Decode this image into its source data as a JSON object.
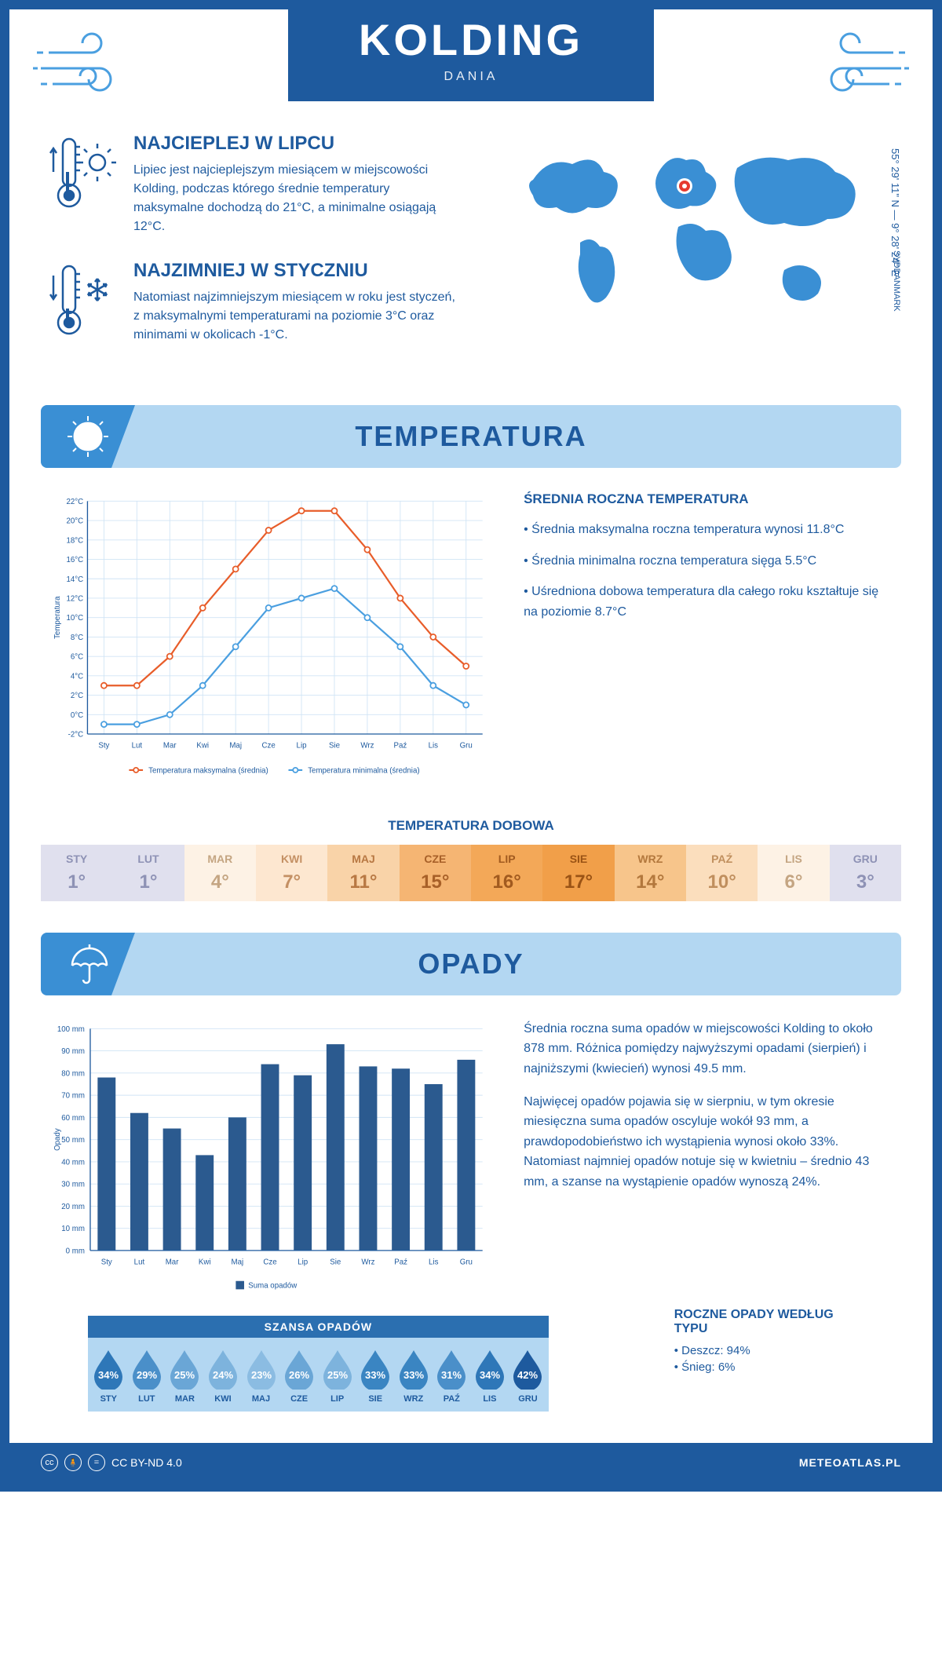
{
  "header": {
    "city": "KOLDING",
    "country": "DANIA",
    "coords": "55° 29' 11\" N — 9° 28' 24\" E",
    "region": "SYDDANMARK"
  },
  "colors": {
    "primary": "#1e5a9e",
    "lightBlue": "#b3d7f2",
    "midBlue": "#3a8fd4",
    "orange": "#e85d2a",
    "chartBlue": "#4a9fe0",
    "grid": "#d0e4f5",
    "barFill": "#2b5a8f"
  },
  "warmest": {
    "title": "NAJCIEPLEJ W LIPCU",
    "text": "Lipiec jest najcieplejszym miesiącem w miejscowości Kolding, podczas którego średnie temperatury maksymalne dochodzą do 21°C, a minimalne osiągają 12°C."
  },
  "coldest": {
    "title": "NAJZIMNIEJ W STYCZNIU",
    "text": "Natomiast najzimniejszym miesiącem w roku jest styczeń, z maksymalnymi temperaturami na poziomie 3°C oraz minimami w okolicach -1°C."
  },
  "temp_section_title": "TEMPERATURA",
  "temp_chart": {
    "type": "line",
    "months": [
      "Sty",
      "Lut",
      "Mar",
      "Kwi",
      "Maj",
      "Cze",
      "Lip",
      "Sie",
      "Wrz",
      "Paź",
      "Lis",
      "Gru"
    ],
    "y_label": "Temperatura",
    "y_min": -2,
    "y_max": 22,
    "y_step": 2,
    "series": [
      {
        "name": "Temperatura maksymalna (średnia)",
        "color": "#e85d2a",
        "values": [
          3,
          3,
          6,
          11,
          15,
          19,
          21,
          21,
          17,
          12,
          8,
          5
        ]
      },
      {
        "name": "Temperatura minimalna (średnia)",
        "color": "#4a9fe0",
        "values": [
          -1,
          -1,
          0,
          3,
          7,
          11,
          12,
          13,
          10,
          7,
          3,
          1
        ]
      }
    ],
    "grid_color": "#d0e4f5",
    "title_fontsize": 11,
    "axis_fontsize": 11,
    "line_width": 2.5,
    "marker": "circle",
    "marker_size": 4
  },
  "temp_stats": {
    "title": "ŚREDNIA ROCZNA TEMPERATURA",
    "lines": [
      "• Średnia maksymalna roczna temperatura wynosi 11.8°C",
      "• Średnia minimalna roczna temperatura sięga 5.5°C",
      "• Uśredniona dobowa temperatura dla całego roku kształtuje się na poziomie 8.7°C"
    ]
  },
  "daily": {
    "title": "TEMPERATURA DOBOWA",
    "months": [
      "STY",
      "LUT",
      "MAR",
      "KWI",
      "MAJ",
      "CZE",
      "LIP",
      "SIE",
      "WRZ",
      "PAŹ",
      "LIS",
      "GRU"
    ],
    "values": [
      "1°",
      "1°",
      "4°",
      "7°",
      "11°",
      "15°",
      "16°",
      "17°",
      "14°",
      "10°",
      "6°",
      "3°"
    ],
    "bg_colors": [
      "#e0e0ee",
      "#e0e0ee",
      "#fdf2e5",
      "#fde7d0",
      "#f9d3a8",
      "#f5b573",
      "#f3a858",
      "#f19f49",
      "#f7c58b",
      "#fbdebd",
      "#fdf2e5",
      "#e0e0ee"
    ],
    "text_colors": [
      "#8e92b5",
      "#8e92b5",
      "#c4a582",
      "#c49064",
      "#b87843",
      "#a86028",
      "#a15a1f",
      "#9a5315",
      "#b3783d",
      "#c08f5e",
      "#c4a582",
      "#8e92b5"
    ]
  },
  "precip_section_title": "OPADY",
  "precip_chart": {
    "type": "bar",
    "months": [
      "Sty",
      "Lut",
      "Mar",
      "Kwi",
      "Maj",
      "Cze",
      "Lip",
      "Sie",
      "Wrz",
      "Paź",
      "Lis",
      "Gru"
    ],
    "y_label": "Opady",
    "y_min": 0,
    "y_max": 100,
    "y_step": 10,
    "unit": "mm",
    "values": [
      78,
      62,
      55,
      43,
      60,
      84,
      79,
      93,
      83,
      82,
      75,
      86
    ],
    "bar_color": "#2b5a8f",
    "grid_color": "#d0e4f5",
    "legend": "Suma opadów",
    "axis_fontsize": 11,
    "bar_width": 0.55
  },
  "precip_text1": "Średnia roczna suma opadów w miejscowości Kolding to około 878 mm. Różnica pomiędzy najwyższymi opadami (sierpień) i najniższymi (kwiecień) wynosi 49.5 mm.",
  "precip_text2": "Najwięcej opadów pojawia się w sierpniu, w tym okresie miesięczna suma opadów oscyluje wokół 93 mm, a prawdopodobieństwo ich wystąpienia wynosi około 33%. Natomiast najmniej opadów notuje się w kwietniu – średnio 43 mm, a szanse na wystąpienie opadów wynoszą 24%.",
  "chance": {
    "title": "SZANSA OPADÓW",
    "months": [
      "STY",
      "LUT",
      "MAR",
      "KWI",
      "MAJ",
      "CZE",
      "LIP",
      "SIE",
      "WRZ",
      "PAŹ",
      "LIS",
      "GRU"
    ],
    "values": [
      "34%",
      "29%",
      "25%",
      "24%",
      "23%",
      "26%",
      "25%",
      "33%",
      "33%",
      "31%",
      "34%",
      "42%"
    ],
    "drop_colors": [
      "#2e77b8",
      "#4a8fc9",
      "#6aa6d6",
      "#7db3dd",
      "#8bbce2",
      "#6aa6d6",
      "#7db3dd",
      "#3a85c2",
      "#3a85c2",
      "#4a8fc9",
      "#2e77b8",
      "#1e5a9e"
    ]
  },
  "precip_type": {
    "title": "ROCZNE OPADY WEDŁUG TYPU",
    "rain": "• Deszcz: 94%",
    "snow": "• Śnieg: 6%"
  },
  "footer": {
    "license": "CC BY-ND 4.0",
    "site": "METEOATLAS.PL"
  }
}
